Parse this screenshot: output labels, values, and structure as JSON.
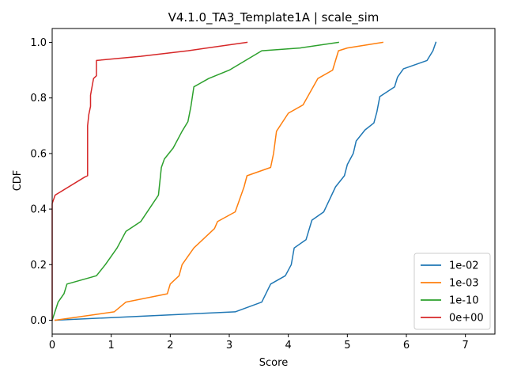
{
  "chart_data": {
    "type": "line",
    "title": "V4.1.0_TA3_Template1A | scale_sim",
    "xlabel": "Score",
    "ylabel": "CDF",
    "xlim": [
      0,
      7.5
    ],
    "ylim": [
      -0.05,
      1.05
    ],
    "xticks": [
      0,
      1,
      2,
      3,
      4,
      5,
      6,
      7
    ],
    "yticks": [
      0.0,
      0.2,
      0.4,
      0.6,
      0.8,
      1.0
    ],
    "xtick_labels": [
      "0",
      "1",
      "2",
      "3",
      "4",
      "5",
      "6",
      "7"
    ],
    "ytick_labels": [
      "0.0",
      "0.2",
      "0.4",
      "0.6",
      "0.8",
      "1.0"
    ],
    "grid": false,
    "legend_position": "bottom-right",
    "series": [
      {
        "name": "1e-02",
        "color": "#1f77b4",
        "x": [
          0.05,
          3.1,
          3.55,
          3.7,
          3.95,
          4.05,
          4.1,
          4.3,
          4.4,
          4.6,
          4.8,
          4.95,
          5.0,
          5.1,
          5.15,
          5.3,
          5.45,
          5.5,
          5.55,
          5.8,
          5.85,
          5.95,
          6.35,
          6.45,
          6.5
        ],
        "y": [
          0.0,
          0.03,
          0.065,
          0.13,
          0.16,
          0.2,
          0.26,
          0.29,
          0.36,
          0.39,
          0.48,
          0.52,
          0.56,
          0.6,
          0.645,
          0.685,
          0.71,
          0.75,
          0.805,
          0.84,
          0.875,
          0.905,
          0.935,
          0.97,
          1.0
        ]
      },
      {
        "name": "1e-03",
        "color": "#ff7f0e",
        "x": [
          0.05,
          1.05,
          1.25,
          1.95,
          2.0,
          2.15,
          2.2,
          2.4,
          2.55,
          2.75,
          2.8,
          3.1,
          3.25,
          3.3,
          3.7,
          3.75,
          3.8,
          4.0,
          4.25,
          4.5,
          4.75,
          4.85,
          5.0,
          5.6
        ],
        "y": [
          0.0,
          0.03,
          0.065,
          0.095,
          0.13,
          0.16,
          0.2,
          0.26,
          0.29,
          0.33,
          0.355,
          0.39,
          0.48,
          0.52,
          0.55,
          0.6,
          0.68,
          0.745,
          0.775,
          0.87,
          0.9,
          0.97,
          0.98,
          1.0
        ]
      },
      {
        "name": "1e-10",
        "color": "#2ca02c",
        "x": [
          0.0,
          0.1,
          0.2,
          0.25,
          0.75,
          0.9,
          1.0,
          1.1,
          1.25,
          1.5,
          1.8,
          1.85,
          1.9,
          2.05,
          2.2,
          2.3,
          2.35,
          2.4,
          2.65,
          3.0,
          3.55,
          4.2,
          4.85
        ],
        "y": [
          0.0,
          0.065,
          0.095,
          0.13,
          0.16,
          0.2,
          0.23,
          0.26,
          0.32,
          0.355,
          0.45,
          0.55,
          0.58,
          0.62,
          0.68,
          0.715,
          0.77,
          0.84,
          0.87,
          0.9,
          0.97,
          0.98,
          1.0
        ]
      },
      {
        "name": "0e+00",
        "color": "#d62728",
        "x": [
          0.0,
          0.0,
          0.05,
          0.55,
          0.6,
          0.6,
          0.6,
          0.62,
          0.65,
          0.65,
          0.7,
          0.75,
          0.75,
          1.5,
          2.3,
          3.3
        ],
        "y": [
          0.0,
          0.42,
          0.45,
          0.515,
          0.52,
          0.65,
          0.7,
          0.74,
          0.77,
          0.81,
          0.87,
          0.88,
          0.935,
          0.95,
          0.97,
          1.0
        ]
      }
    ]
  }
}
